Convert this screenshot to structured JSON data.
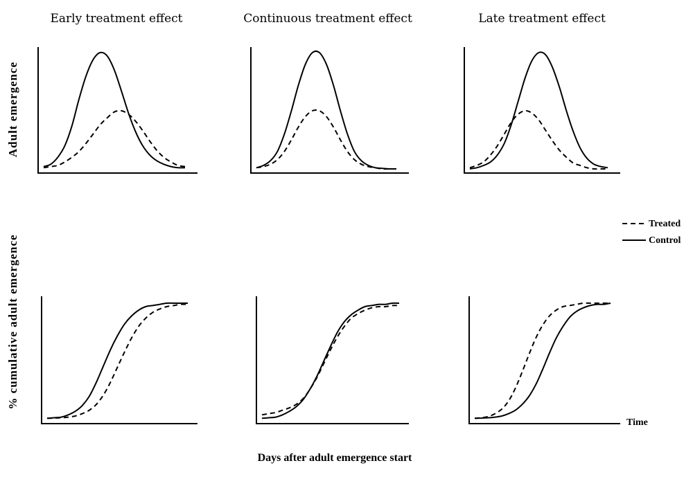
{
  "chart_data": {
    "type": "line",
    "panel_titles": [
      "Early treatment effect",
      "Continuous treatment effect",
      "Late treatment effect"
    ],
    "ylabel_top": "Adult emergence",
    "ylabel_bottom": "% cumulative adult emergence",
    "xlabel": "Days after adult emergence start",
    "time_label": "Time",
    "legend": [
      {
        "name": "Treated",
        "style": "dashed"
      },
      {
        "name": "Control",
        "style": "solid"
      }
    ],
    "x": [
      0,
      0.05,
      0.1,
      0.15,
      0.2,
      0.25,
      0.3,
      0.35,
      0.4,
      0.45,
      0.5,
      0.55,
      0.6,
      0.65,
      0.7,
      0.75,
      0.8,
      0.85,
      0.9,
      0.95,
      1.0
    ],
    "panels": [
      {
        "row": "top",
        "col": 0,
        "series": [
          {
            "name": "Control",
            "values": [
              0.02,
              0.04,
              0.1,
              0.2,
              0.37,
              0.6,
              0.8,
              0.94,
              1.0,
              0.97,
              0.85,
              0.67,
              0.48,
              0.32,
              0.2,
              0.12,
              0.07,
              0.04,
              0.02,
              0.01,
              0.01
            ]
          },
          {
            "name": "Treated",
            "values": [
              0.01,
              0.02,
              0.03,
              0.06,
              0.1,
              0.15,
              0.22,
              0.3,
              0.38,
              0.44,
              0.49,
              0.5,
              0.47,
              0.41,
              0.33,
              0.24,
              0.16,
              0.1,
              0.06,
              0.03,
              0.02
            ]
          }
        ]
      },
      {
        "row": "top",
        "col": 1,
        "series": [
          {
            "name": "Control",
            "values": [
              0.01,
              0.03,
              0.07,
              0.15,
              0.3,
              0.5,
              0.72,
              0.9,
              1.0,
              1.0,
              0.9,
              0.72,
              0.5,
              0.3,
              0.15,
              0.07,
              0.03,
              0.01,
              0.005,
              0.0,
              0.0
            ]
          },
          {
            "name": "Treated",
            "values": [
              0.01,
              0.02,
              0.04,
              0.08,
              0.15,
              0.25,
              0.36,
              0.45,
              0.5,
              0.5,
              0.45,
              0.36,
              0.25,
              0.15,
              0.08,
              0.04,
              0.02,
              0.01,
              0.0,
              0.0,
              0.0
            ]
          }
        ]
      },
      {
        "row": "top",
        "col": 2,
        "series": [
          {
            "name": "Control",
            "values": [
              0.0,
              0.01,
              0.03,
              0.06,
              0.12,
              0.22,
              0.38,
              0.58,
              0.78,
              0.93,
              1.0,
              0.98,
              0.87,
              0.7,
              0.5,
              0.32,
              0.18,
              0.09,
              0.04,
              0.02,
              0.01
            ]
          },
          {
            "name": "Treated",
            "values": [
              0.01,
              0.03,
              0.06,
              0.12,
              0.2,
              0.3,
              0.4,
              0.47,
              0.5,
              0.48,
              0.42,
              0.33,
              0.24,
              0.16,
              0.1,
              0.05,
              0.03,
              0.01,
              0.0,
              0.0,
              0.0
            ]
          }
        ]
      },
      {
        "row": "bottom",
        "col": 0,
        "series": [
          {
            "name": "Control",
            "values": [
              0.01,
              0.015,
              0.02,
              0.04,
              0.07,
              0.12,
              0.2,
              0.32,
              0.46,
              0.6,
              0.72,
              0.82,
              0.89,
              0.94,
              0.97,
              0.98,
              0.99,
              1.0,
              1.0,
              1.0,
              1.0
            ]
          },
          {
            "name": "Treated",
            "values": [
              0.01,
              0.012,
              0.015,
              0.02,
              0.03,
              0.05,
              0.08,
              0.13,
              0.21,
              0.32,
              0.45,
              0.58,
              0.7,
              0.8,
              0.87,
              0.92,
              0.95,
              0.97,
              0.98,
              0.99,
              0.99
            ]
          }
        ]
      },
      {
        "row": "bottom",
        "col": 1,
        "series": [
          {
            "name": "Control",
            "values": [
              0.01,
              0.015,
              0.02,
              0.04,
              0.07,
              0.11,
              0.17,
              0.26,
              0.37,
              0.5,
              0.63,
              0.75,
              0.84,
              0.9,
              0.94,
              0.97,
              0.98,
              0.99,
              0.99,
              1.0,
              1.0
            ]
          },
          {
            "name": "Treated",
            "values": [
              0.04,
              0.05,
              0.06,
              0.08,
              0.1,
              0.13,
              0.18,
              0.26,
              0.36,
              0.48,
              0.6,
              0.71,
              0.8,
              0.87,
              0.91,
              0.94,
              0.96,
              0.97,
              0.97,
              0.98,
              0.98
            ]
          }
        ]
      },
      {
        "row": "bottom",
        "col": 2,
        "series": [
          {
            "name": "Control",
            "values": [
              0.01,
              0.012,
              0.015,
              0.02,
              0.03,
              0.05,
              0.08,
              0.13,
              0.2,
              0.3,
              0.43,
              0.57,
              0.7,
              0.8,
              0.88,
              0.93,
              0.96,
              0.98,
              0.99,
              0.99,
              1.0
            ]
          },
          {
            "name": "Treated",
            "values": [
              0.01,
              0.015,
              0.025,
              0.05,
              0.09,
              0.16,
              0.27,
              0.41,
              0.56,
              0.7,
              0.81,
              0.89,
              0.94,
              0.97,
              0.98,
              0.99,
              1.0,
              1.0,
              1.0,
              1.0,
              1.0
            ]
          }
        ]
      }
    ],
    "ylim": [
      0,
      1
    ],
    "xlim": [
      0,
      1
    ]
  }
}
